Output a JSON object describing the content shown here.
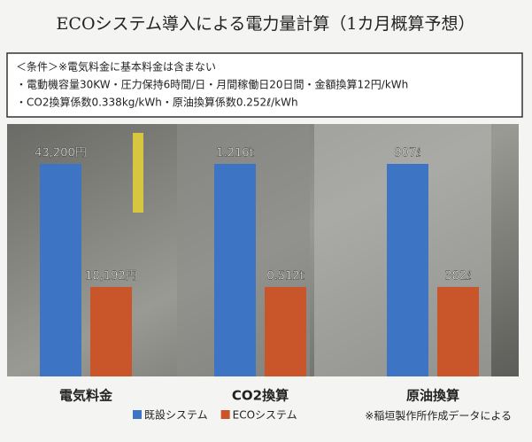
{
  "chart_data": {
    "type": "bar",
    "title": "ECOシステム導入による電力量計算（1カ月概算予想）",
    "conditions": [
      "＜条件＞※電気料金に基本料金は含まない",
      "・電動機容量30KW・圧力保持6時間/日・月間稼働日20日間・金額換算12円/kWh",
      "・CO2換算係数0.338kg/kWh・原油換算係数0.252ℓ/kWh"
    ],
    "categories": [
      "電気料金",
      "CO2換算",
      "原油換算"
    ],
    "series": [
      {
        "name": "既設システム",
        "color": "#3d74c4",
        "values": [
          43200,
          1.216,
          907
        ],
        "value_labels": [
          "43,200円",
          "1.216t",
          "907ℓ"
        ]
      },
      {
        "name": "ECOシステム",
        "color": "#c8562a",
        "values": [
          18192,
          0.512,
          382
        ],
        "value_labels": [
          "18,192円",
          "0.512t",
          "382ℓ"
        ]
      }
    ],
    "source": "※稲垣製作所作成データによる"
  }
}
